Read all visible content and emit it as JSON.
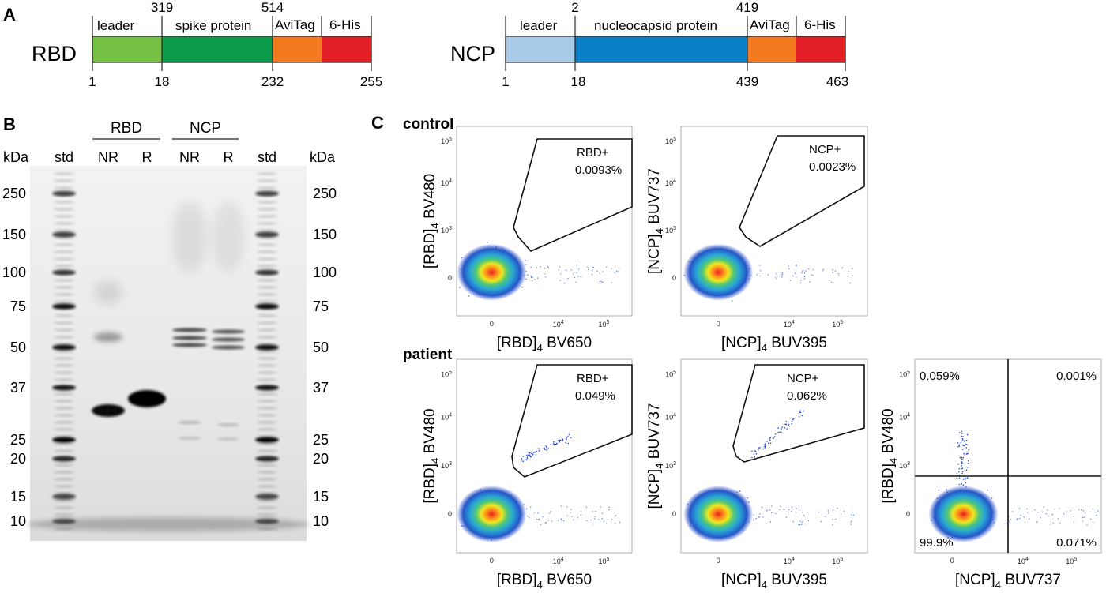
{
  "panels": {
    "a": "A",
    "b": "B",
    "c": "C"
  },
  "construct_rbd": {
    "name": "RBD",
    "segments": [
      {
        "label": "leader",
        "color": "#74c043"
      },
      {
        "label": "spike protein",
        "color": "#0b9a4a"
      },
      {
        "label": "AviTag",
        "color": "#f47a20"
      },
      {
        "label": "6-His",
        "color": "#e21f26"
      }
    ],
    "top_numbers": [
      "319",
      "514"
    ],
    "bottom_numbers": [
      "1",
      "18",
      "232",
      "255"
    ]
  },
  "construct_ncp": {
    "name": "NCP",
    "segments": [
      {
        "label": "leader",
        "color": "#a9cbea"
      },
      {
        "label": "nucleocapsid protein",
        "color": "#0a80c8"
      },
      {
        "label": "AviTag",
        "color": "#f47a20"
      },
      {
        "label": "6-His",
        "color": "#e21f26"
      }
    ],
    "top_numbers": [
      "2",
      "419"
    ],
    "bottom_numbers": [
      "1",
      "18",
      "439",
      "463"
    ]
  },
  "gel": {
    "groups": [
      "RBD",
      "NCP"
    ],
    "lanes": [
      "std",
      "NR",
      "R",
      "NR",
      "R",
      "std"
    ],
    "unit": "kDa",
    "markers": [
      "250",
      "150",
      "100",
      "75",
      "50",
      "37",
      "25",
      "20",
      "15",
      "10"
    ]
  },
  "flow": {
    "row_labels": [
      "control",
      "patient"
    ],
    "plots": [
      {
        "gate": "RBD+",
        "pct": "0.0093%",
        "xlabel": "[RBD]",
        "xsub": "4",
        "xch": " BV650",
        "ylabel": "[RBD]",
        "ysub": "4",
        "ych": " BV480"
      },
      {
        "gate": "NCP+",
        "pct": "0.0023%",
        "xlabel": "[NCP]",
        "xsub": "4",
        "xch": " BUV395",
        "ylabel": "[NCP]",
        "ysub": "4",
        "ych": " BUV737"
      },
      {
        "gate": "RBD+",
        "pct": "0.049%",
        "xlabel": "[RBD]",
        "xsub": "4",
        "xch": " BV650",
        "ylabel": "[RBD]",
        "ysub": "4",
        "ych": " BV480"
      },
      {
        "gate": "NCP+",
        "pct": "0.062%",
        "xlabel": "[NCP]",
        "xsub": "4",
        "xch": " BUV395",
        "ylabel": "[NCP]",
        "ysub": "4",
        "ych": " BUV737"
      },
      {
        "gate": "",
        "pct": "",
        "xlabel": "[NCP]",
        "xsub": "4",
        "xch": " BUV737",
        "ylabel": "[RBD]",
        "ysub": "4",
        "ych": " BV480"
      }
    ],
    "quadrants": {
      "top_left": "0.059%",
      "top_right": "0.001%",
      "bottom_left": "99.9%",
      "bottom_right": "0.071%"
    },
    "ticks": {
      "zero": "0",
      "base": "10",
      "exps": [
        "3",
        "4",
        "5"
      ]
    }
  }
}
